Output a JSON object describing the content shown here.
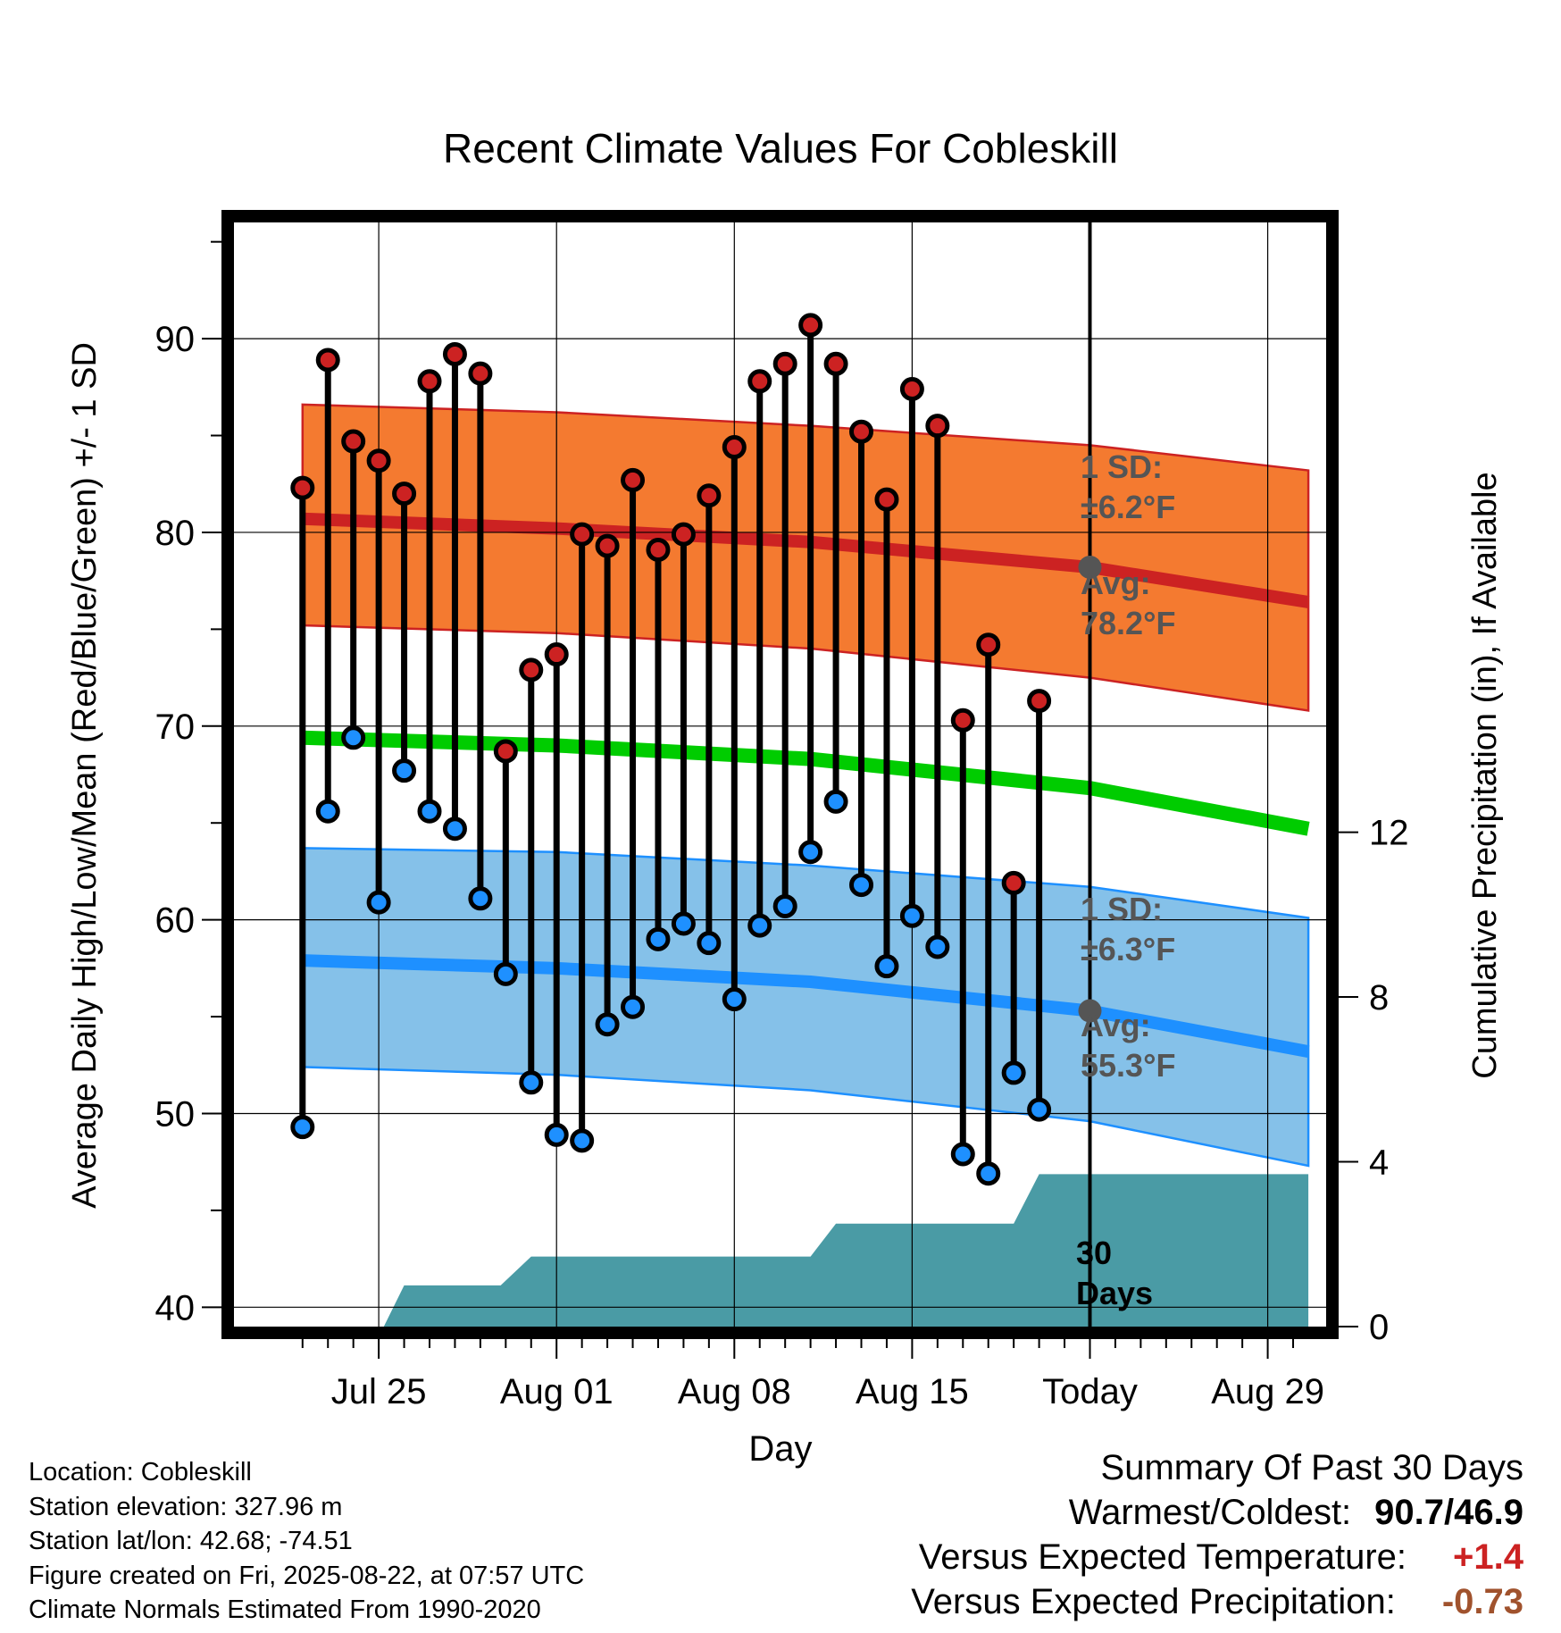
{
  "chart_data": {
    "type": "line",
    "title": "Recent Climate Values For Cobleskill",
    "xlabel": "Day",
    "ylabel_left": "Average Daily High/Low/Mean (Red/Blue/Green) +/- 1 SD",
    "ylabel_right": "Cumulative Precipitation (in), If Available",
    "x_ticks": [
      {
        "day": 3,
        "label": "Jul 25"
      },
      {
        "day": 10,
        "label": "Aug 01"
      },
      {
        "day": 17,
        "label": "Aug 08"
      },
      {
        "day": 24,
        "label": "Aug 15"
      },
      {
        "day": 31,
        "label": "Today"
      },
      {
        "day": 38,
        "label": "Aug 29"
      }
    ],
    "xlim": [
      -2.7,
      40.3
    ],
    "ylim_left": [
      39,
      96
    ],
    "ylim_right": [
      0,
      26.8
    ],
    "y_ticks_left": [
      40,
      50,
      60,
      70,
      80,
      90
    ],
    "y_ticks_right": [
      0,
      4,
      8,
      12
    ],
    "today_day": 31,
    "normals": {
      "days": [
        0,
        10,
        20,
        31,
        39.6
      ],
      "high_avg": [
        80.7,
        80.2,
        79.5,
        78.2,
        76.4
      ],
      "high_upper": [
        86.6,
        86.2,
        85.5,
        84.5,
        83.2
      ],
      "high_lower": [
        75.2,
        74.8,
        74.0,
        72.5,
        70.8
      ],
      "mean_avg": [
        69.4,
        69.0,
        68.3,
        66.8,
        64.7
      ],
      "low_avg": [
        57.9,
        57.5,
        56.8,
        55.3,
        53.2
      ],
      "low_upper": [
        63.7,
        63.5,
        62.8,
        61.7,
        60.1
      ],
      "low_lower": [
        52.4,
        52.0,
        51.2,
        49.6,
        47.3
      ]
    },
    "daily": {
      "days": [
        0,
        1,
        2,
        3,
        4,
        5,
        6,
        7,
        8,
        9,
        10,
        11,
        12,
        13,
        14,
        15,
        16,
        17,
        18,
        19,
        20,
        21,
        22,
        23,
        24,
        25,
        26,
        27,
        28,
        29
      ],
      "high": [
        82.3,
        88.9,
        84.7,
        83.7,
        82.0,
        87.8,
        89.2,
        88.2,
        68.7,
        72.9,
        73.7,
        79.9,
        79.3,
        82.7,
        79.1,
        79.9,
        81.9,
        84.4,
        87.8,
        88.7,
        90.7,
        88.7,
        85.2,
        81.7,
        87.4,
        85.5,
        70.3,
        74.2,
        61.9,
        71.3
      ],
      "low": [
        49.3,
        65.6,
        69.4,
        60.9,
        67.7,
        65.6,
        64.7,
        61.1,
        57.2,
        51.6,
        48.9,
        48.6,
        54.6,
        55.5,
        59.0,
        59.8,
        58.8,
        55.9,
        59.7,
        60.7,
        63.5,
        66.1,
        61.8,
        57.6,
        60.2,
        58.6,
        47.9,
        46.9,
        52.1,
        50.2
      ]
    },
    "precip": {
      "days": [
        0,
        3.2,
        4,
        7.8,
        9,
        13,
        16,
        17,
        20,
        21,
        22,
        23,
        25,
        28,
        29,
        29.7,
        39.6
      ],
      "cum": [
        0,
        0,
        1,
        1,
        1.7,
        1.7,
        1.7,
        1.7,
        1.7,
        2.5,
        2.5,
        2.5,
        2.5,
        2.5,
        3.7,
        3.7,
        3.7
      ]
    },
    "annotations": {
      "high_sd_label": "1 SD:",
      "high_sd_value": "±6.2°F",
      "high_avg_label": "Avg:",
      "high_avg_value": "78.2°F",
      "low_sd_label": "1 SD:",
      "low_sd_value": "±6.3°F",
      "low_avg_label": "Avg:",
      "low_avg_value": "55.3°F",
      "days_num": "30",
      "days_word": "Days"
    },
    "colors": {
      "high": "#cc2222",
      "high_band": "#f47a30",
      "mean": "#00cc00",
      "low": "#1e90ff",
      "low_band": "#85c1e9",
      "precip": "#4a9ba5",
      "marker_avg": "#555555"
    }
  },
  "footer": {
    "location": "Location: Cobleskill",
    "elevation": "Station elevation: 327.96 m",
    "latlon": "Station lat/lon: 42.68; -74.51",
    "created": "Figure created on Fri, 2025-08-22, at 07:57 UTC",
    "normals": "Climate Normals Estimated From 1990-2020"
  },
  "summary": {
    "heading": "Summary Of Past 30 Days",
    "warm_cold_label": "Warmest/Coldest:",
    "warm_cold_value": "90.7/46.9",
    "temp_label": "Versus Expected Temperature:",
    "temp_value": "+1.4",
    "temp_color": "#cc2222",
    "precip_label": "Versus Expected Precipitation:",
    "precip_value": "-0.73",
    "precip_color": "#a0522d"
  }
}
